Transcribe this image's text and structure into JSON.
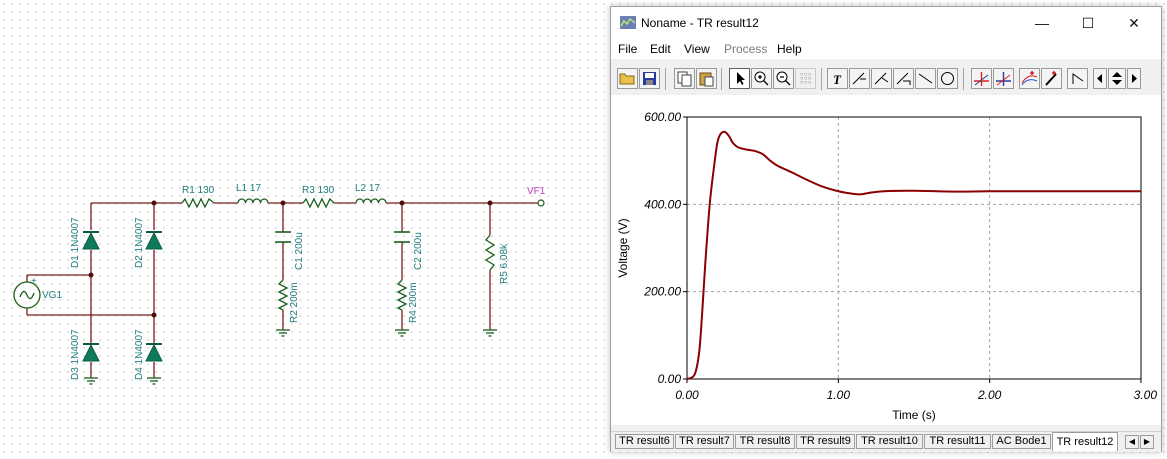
{
  "schematic": {
    "labels": {
      "r1": "R1 130",
      "l1": "L1 17",
      "r3": "R3 130",
      "l2": "L2 17",
      "vf1": "VF1",
      "d1": "D1 1N4007",
      "d2": "D2 1N4007",
      "d3": "D3 1N4007",
      "d4": "D4 1N4007",
      "c1": "C1 200u",
      "r2": "R2 200m",
      "c2": "C2 200u",
      "r4": "R4 200m",
      "r5": "R5 6.08k",
      "vg1": "VG1",
      "plus": "+"
    }
  },
  "window": {
    "title": "Noname - TR result12",
    "controls": {
      "minimize": "—",
      "maximize": "☐",
      "close": "✕"
    },
    "menu": [
      "File",
      "Edit",
      "View",
      "Process",
      "Help"
    ],
    "menu_disabled": [
      false,
      false,
      false,
      true,
      false
    ],
    "toolbar_icons": [
      "open-folder-icon",
      "save-icon",
      "copy-icon",
      "paste-icon",
      "pointer-icon",
      "zoom-in-icon",
      "zoom-out-icon",
      "grid-icon",
      "text-icon",
      "cursor-a-icon",
      "cursor-b-icon",
      "cursor-c-icon",
      "line-icon",
      "circle-icon",
      "marker-a-icon",
      "marker-b-icon",
      "curves-icon",
      "pen-icon",
      "step-icon",
      "arrow-left-icon",
      "arrow-updown-icon",
      "arrow-right-icon"
    ],
    "tabs": [
      "TR result6",
      "TR result7",
      "TR result8",
      "TR result9",
      "TR result10",
      "TR result11",
      "AC Bode1",
      "TR result12"
    ],
    "active_tab": "TR result12",
    "tab_nav": {
      "prev": "◀",
      "next": "▶"
    }
  },
  "chart_data": {
    "type": "line",
    "title": "",
    "xlabel": "Time (s)",
    "ylabel": "Voltage (V)",
    "xlim": [
      0,
      3
    ],
    "ylim": [
      0,
      600
    ],
    "x_ticks": [
      "0.00",
      "1.00",
      "2.00",
      "3.00"
    ],
    "y_ticks": [
      "0.00",
      "200.00",
      "400.00",
      "600.00"
    ],
    "grid": true,
    "line_color": "#8b0000",
    "series": [
      {
        "x": [
          0,
          0.05,
          0.08,
          0.1,
          0.12,
          0.15,
          0.18,
          0.2,
          0.22,
          0.25,
          0.28,
          0.3,
          0.33,
          0.36,
          0.4,
          0.45,
          0.5,
          0.55,
          0.6,
          0.65,
          0.7,
          0.8,
          0.9,
          1.0,
          1.1,
          1.15,
          1.2,
          1.3,
          1.5,
          1.8,
          2.0,
          2.5,
          3.0
        ],
        "y": [
          0,
          10,
          60,
          150,
          260,
          400,
          490,
          540,
          560,
          566,
          555,
          542,
          532,
          528,
          525,
          522,
          515,
          500,
          488,
          480,
          472,
          455,
          440,
          430,
          424,
          423,
          426,
          430,
          431,
          429,
          430,
          430,
          430
        ]
      }
    ]
  }
}
